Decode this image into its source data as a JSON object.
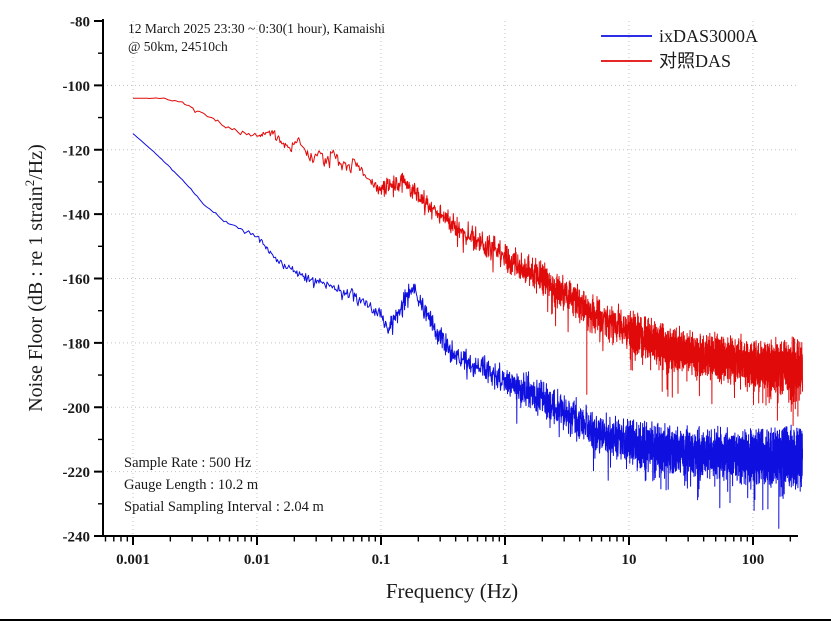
{
  "chart_data": {
    "type": "line",
    "title": "",
    "xlabel": "Frequency (Hz)",
    "ylabel": "Noise Floor (dB : re 1 strain²/Hz)",
    "ylabel_parts": {
      "prefix": "Noise Floor (dB : re 1 strain",
      "superscript": "2",
      "suffix": "/Hz)"
    },
    "x_scale": "log",
    "x_range_hz": [
      0.001,
      250
    ],
    "ylim": [
      -240,
      -80
    ],
    "x_tick_labels": [
      "0.001",
      "0.01",
      "0.1",
      "1",
      "10",
      "100"
    ],
    "x_tick_decades": [
      -3,
      -2,
      -1,
      0,
      1,
      2
    ],
    "y_tick_values": [
      -80,
      -100,
      -120,
      -140,
      -160,
      -180,
      -200,
      -220,
      -240
    ],
    "y_minor_step_db": 10,
    "grid": {
      "style": "dotted",
      "color": "#c3c3c3",
      "horizontal_every_db": 20,
      "vertical_every_decade": true
    },
    "axis_color": "#000000",
    "annotations": {
      "top_left": [
        "12 March 2025  23:30 ~ 0:30(1 hour), Kamaishi",
        "@ 50km, 24510ch"
      ],
      "bottom_left": [
        "Sample Rate : 500 Hz",
        "Gauge Length : 10.2 m",
        "Spatial Sampling Interval : 2.04 m"
      ]
    },
    "legend": {
      "position": "top-right",
      "entries": [
        {
          "label": "ixDAS3000A",
          "color": "#0f0fe0"
        },
        {
          "label": "对照DAS",
          "color": "#e00a0a"
        }
      ]
    },
    "sampling_points_per_decade": [
      {
        "from": -3.0,
        "to": -2.0,
        "n": 60
      },
      {
        "from": -2.0,
        "to": -1.0,
        "n": 140
      },
      {
        "from": -1.0,
        "to": 0.0,
        "n": 300
      },
      {
        "from": 0.0,
        "to": 1.0,
        "n": 650
      },
      {
        "from": 1.0,
        "to": 2.0,
        "n": 1300
      },
      {
        "from": 2.0,
        "to": 2.4,
        "n": 900
      }
    ],
    "series": [
      {
        "name": "ixDAS3000A",
        "color": "#0f0fe0",
        "seed": 42,
        "center_line_log10hz_db": [
          [
            -3.0,
            -115
          ],
          [
            -2.85,
            -120
          ],
          [
            -2.7,
            -125.5
          ],
          [
            -2.55,
            -131.5
          ],
          [
            -2.43,
            -137
          ],
          [
            -2.33,
            -140
          ],
          [
            -2.25,
            -142.5
          ],
          [
            -2.1,
            -145
          ],
          [
            -2.0,
            -147
          ],
          [
            -1.9,
            -151.5
          ],
          [
            -1.8,
            -155.5
          ],
          [
            -1.7,
            -158
          ],
          [
            -1.55,
            -160.5
          ],
          [
            -1.4,
            -162.5
          ],
          [
            -1.25,
            -165
          ],
          [
            -1.1,
            -168.5
          ],
          [
            -1.0,
            -172
          ],
          [
            -0.95,
            -175.5
          ],
          [
            -0.88,
            -172
          ],
          [
            -0.8,
            -165.5
          ],
          [
            -0.75,
            -163.5
          ],
          [
            -0.7,
            -166
          ],
          [
            -0.62,
            -172
          ],
          [
            -0.55,
            -177
          ],
          [
            -0.45,
            -182
          ],
          [
            -0.35,
            -185
          ],
          [
            -0.2,
            -188
          ],
          [
            0.0,
            -191.5
          ],
          [
            0.2,
            -195
          ],
          [
            0.4,
            -199.5
          ],
          [
            0.6,
            -204.5
          ],
          [
            0.8,
            -208.5
          ],
          [
            1.0,
            -211
          ],
          [
            1.3,
            -213
          ],
          [
            1.6,
            -214
          ],
          [
            2.0,
            -215
          ],
          [
            2.4,
            -215.5
          ]
        ],
        "noise_halfwidth_db": [
          [
            -3.0,
            0
          ],
          [
            -2.4,
            0.3
          ],
          [
            -2.0,
            0.8
          ],
          [
            -1.6,
            1.5
          ],
          [
            -1.2,
            2.2
          ],
          [
            -0.9,
            2.6
          ],
          [
            -0.6,
            3.2
          ],
          [
            -0.3,
            4.0
          ],
          [
            0.0,
            5.0
          ],
          [
            0.4,
            6.0
          ],
          [
            0.8,
            7.0
          ],
          [
            1.2,
            7.5
          ],
          [
            1.6,
            8.0
          ],
          [
            2.0,
            8.5
          ],
          [
            2.4,
            10.0
          ]
        ],
        "spikes_log10hz_db": []
      },
      {
        "name": "对照DAS",
        "color": "#e00a0a",
        "seed": 7,
        "center_line_log10hz_db": [
          [
            -3.0,
            -104
          ],
          [
            -2.75,
            -104
          ],
          [
            -2.6,
            -105.5
          ],
          [
            -2.45,
            -108.5
          ],
          [
            -2.28,
            -112
          ],
          [
            -2.15,
            -114.5
          ],
          [
            -2.0,
            -116
          ],
          [
            -1.88,
            -114.5
          ],
          [
            -1.8,
            -117.5
          ],
          [
            -1.73,
            -119.5
          ],
          [
            -1.68,
            -116.5
          ],
          [
            -1.62,
            -120
          ],
          [
            -1.57,
            -123
          ],
          [
            -1.5,
            -121
          ],
          [
            -1.45,
            -123.5
          ],
          [
            -1.38,
            -120.5
          ],
          [
            -1.3,
            -126
          ],
          [
            -1.22,
            -124
          ],
          [
            -1.12,
            -128.5
          ],
          [
            -1.0,
            -132.5
          ],
          [
            -0.92,
            -131
          ],
          [
            -0.82,
            -129.5
          ],
          [
            -0.72,
            -133.5
          ],
          [
            -0.6,
            -138
          ],
          [
            -0.45,
            -142
          ],
          [
            -0.3,
            -146
          ],
          [
            -0.15,
            -149.5
          ],
          [
            0.0,
            -153
          ],
          [
            0.3,
            -160
          ],
          [
            0.6,
            -168
          ],
          [
            0.75,
            -171.5
          ],
          [
            1.0,
            -176
          ],
          [
            1.3,
            -181
          ],
          [
            1.7,
            -184.5
          ],
          [
            2.0,
            -186
          ],
          [
            2.4,
            -188
          ]
        ],
        "noise_halfwidth_db": [
          [
            -3.0,
            0
          ],
          [
            -2.5,
            0.4
          ],
          [
            -2.1,
            0.9
          ],
          [
            -1.7,
            1.6
          ],
          [
            -1.3,
            2.2
          ],
          [
            -0.9,
            2.8
          ],
          [
            -0.5,
            3.6
          ],
          [
            -0.1,
            4.5
          ],
          [
            0.3,
            5.5
          ],
          [
            0.7,
            6.2
          ],
          [
            1.1,
            6.8
          ],
          [
            1.5,
            7.2
          ],
          [
            2.0,
            8.0
          ],
          [
            2.4,
            9.0
          ]
        ],
        "spikes_log10hz_db": [
          [
            0.66,
            -196
          ]
        ]
      }
    ]
  }
}
